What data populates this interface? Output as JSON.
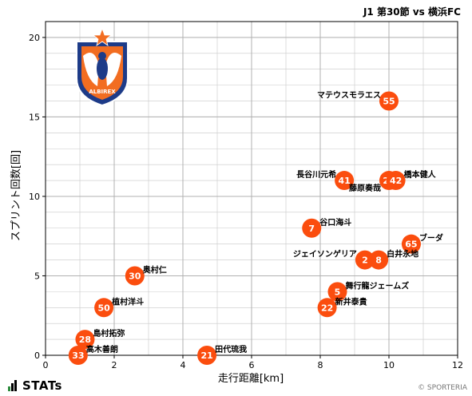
{
  "header": {
    "title": "J1 第30節 vs 横浜FC"
  },
  "footer": {
    "logo_text": "STATs",
    "credit": "© SPORTERIA"
  },
  "club_emblem": {
    "name": "albirex-niigata-emblem",
    "text": "ALBIREX",
    "colors": {
      "orange": "#f26d21",
      "navy": "#1d3b88"
    }
  },
  "colors": {
    "point": "#fb4d0e",
    "point_text": "#ffffff",
    "grid": "#c8c8c8",
    "axis": "#000000"
  },
  "chart_data": {
    "type": "scatter",
    "xlabel": "走行距離[km]",
    "ylabel": "スプリント回数[回]",
    "xlim": [
      0,
      12
    ],
    "ylim": [
      0,
      21
    ],
    "xticks": [
      0,
      2,
      4,
      6,
      8,
      10,
      12
    ],
    "yticks": [
      0,
      5,
      10,
      15,
      20
    ],
    "grid": true,
    "points": [
      {
        "number": "55",
        "name": "マテウスモラエス",
        "x": 10.0,
        "y": 16,
        "label_side": "left",
        "label_dy": -4
      },
      {
        "number": "41",
        "name": "長谷川元希",
        "x": 8.7,
        "y": 11,
        "label_side": "left",
        "label_dy": -4
      },
      {
        "number": "25",
        "name": "藤原奏哉",
        "x": 10.0,
        "y": 11,
        "label_side": "left",
        "label_dy": 13
      },
      {
        "number": "42",
        "name": "橋本健人",
        "x": 10.2,
        "y": 11,
        "label_side": "right",
        "label_dy": -4
      },
      {
        "number": "7",
        "name": "谷口海斗",
        "x": 7.75,
        "y": 8,
        "label_side": "right",
        "label_dy": -4
      },
      {
        "number": "65",
        "name": "ブーダ",
        "x": 10.65,
        "y": 7,
        "label_side": "right",
        "label_dy": -4
      },
      {
        "number": "2",
        "name": "ジェイソンゲリア",
        "x": 9.3,
        "y": 6,
        "label_side": "left",
        "label_dy": -4
      },
      {
        "number": "8",
        "name": "白井永地",
        "x": 9.7,
        "y": 6,
        "label_side": "right",
        "label_dy": -4
      },
      {
        "number": "30",
        "name": "奥村仁",
        "x": 2.6,
        "y": 5,
        "label_side": "right",
        "label_dy": -4
      },
      {
        "number": "5",
        "name": "舞行龍ジェームズ",
        "x": 8.5,
        "y": 4,
        "label_side": "right",
        "label_dy": -4
      },
      {
        "number": "22",
        "name": "新井泰貴",
        "x": 8.2,
        "y": 3,
        "label_side": "right",
        "label_dy": -4
      },
      {
        "number": "50",
        "name": "植村洋斗",
        "x": 1.7,
        "y": 3,
        "label_side": "right",
        "label_dy": -4
      },
      {
        "number": "28",
        "name": "島村拓弥",
        "x": 1.15,
        "y": 1,
        "label_side": "right",
        "label_dy": -4
      },
      {
        "number": "33",
        "name": "高木善朗",
        "x": 0.95,
        "y": 0,
        "label_side": "right",
        "label_dy": -4
      },
      {
        "number": "21",
        "name": "田代琉我",
        "x": 4.7,
        "y": 0,
        "label_side": "right",
        "label_dy": -4
      }
    ]
  }
}
